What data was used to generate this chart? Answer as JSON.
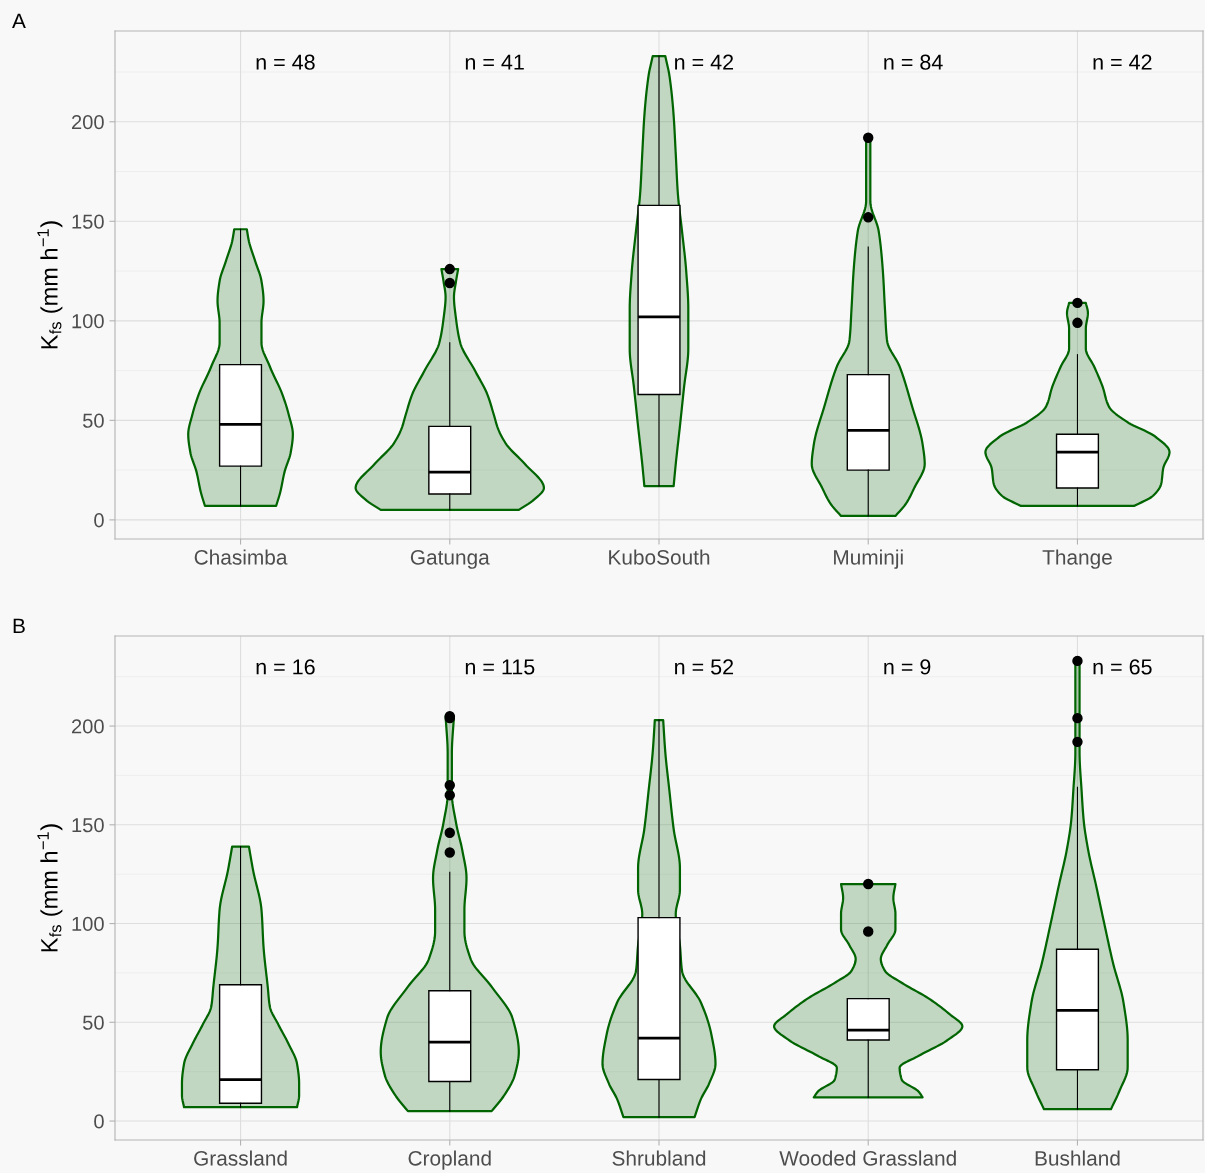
{
  "chart_data": [
    {
      "type": "box",
      "title": "A",
      "ylabel": "K$_{fs}$ (mm h$^{−1}$)",
      "categories": [
        "Chasimba",
        "Gatunga",
        "KuboSouth",
        "Muminji",
        "Thange"
      ],
      "boxes": [
        {
          "low": 7,
          "q1": 27,
          "median": 48,
          "q3": 78,
          "high": 146
        },
        {
          "low": 5,
          "q1": 13,
          "median": 24,
          "q3": 47,
          "high": 89,
          "outliers": [
            119,
            126
          ]
        },
        {
          "low": 17,
          "q1": 63,
          "median": 102,
          "q3": 158,
          "high": 233
        },
        {
          "low": 2,
          "q1": 25,
          "median": 45,
          "q3": 73,
          "high": 137,
          "outliers": [
            152,
            192
          ]
        },
        {
          "low": 7,
          "q1": 16,
          "median": 34,
          "q3": 43,
          "high": 83,
          "outliers": [
            99,
            109
          ]
        }
      ],
      "ylim": [
        -9.6,
        245.6
      ],
      "yticks": [
        0,
        50,
        100,
        150,
        200
      ],
      "grid": true,
      "annotations": [
        "n = 48",
        "n = 41",
        "n = 42",
        "n = 84",
        "n = 42"
      ]
    },
    {
      "type": "box",
      "title": "B",
      "ylabel": "K$_{fs}$ (mm h$^{−1}$)",
      "categories": [
        "Grassland",
        "Cropland",
        "Shrubland",
        "Wooded Grassland",
        "Bushland"
      ],
      "boxes": [
        {
          "low": 7,
          "q1": 9,
          "median": 21,
          "q3": 69,
          "high": 139
        },
        {
          "low": 5,
          "q1": 20,
          "median": 40,
          "q3": 66,
          "high": 126,
          "outliers": [
            136,
            146,
            165,
            170,
            204,
            205
          ]
        },
        {
          "low": 2,
          "q1": 21,
          "median": 42,
          "q3": 103,
          "high": 203
        },
        {
          "low": 12,
          "q1": 41,
          "median": 46,
          "q3": 62,
          "high": 62,
          "outliers": [
            96,
            120
          ]
        },
        {
          "low": 6,
          "q1": 26,
          "median": 56,
          "q3": 87,
          "high": 169,
          "outliers": [
            192,
            204,
            233
          ]
        }
      ],
      "ylim": [
        -9.6,
        245.6
      ],
      "yticks": [
        0,
        50,
        100,
        150,
        200
      ],
      "grid": true,
      "annotations": [
        "n = 16",
        "n = 115",
        "n = 52",
        "n = 9",
        "n = 65"
      ]
    }
  ]
}
